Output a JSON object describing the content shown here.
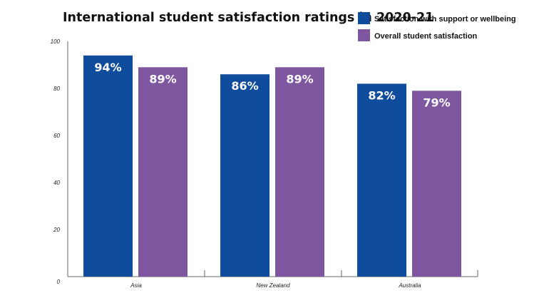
{
  "chart_data": {
    "type": "bar",
    "title": "International student satisfaction ratings in 2020-21",
    "categories": [
      "Asia",
      "New Zealand",
      "Australia"
    ],
    "series": [
      {
        "name": "Satisfaction with support or wellbeing",
        "values": [
          94,
          86,
          82
        ],
        "labels": [
          "94%",
          "86%",
          "82%"
        ],
        "color": "#0f4c9c"
      },
      {
        "name": "Overall student satisfaction",
        "values": [
          89,
          89,
          79
        ],
        "labels": [
          "89%",
          "89%",
          "79%"
        ],
        "color": "#7e57a0"
      }
    ],
    "yticks": [
      "0",
      "20",
      "40",
      "60",
      "80",
      "100"
    ],
    "ylim": [
      0,
      100
    ],
    "grid": false,
    "legend": "top-right"
  }
}
